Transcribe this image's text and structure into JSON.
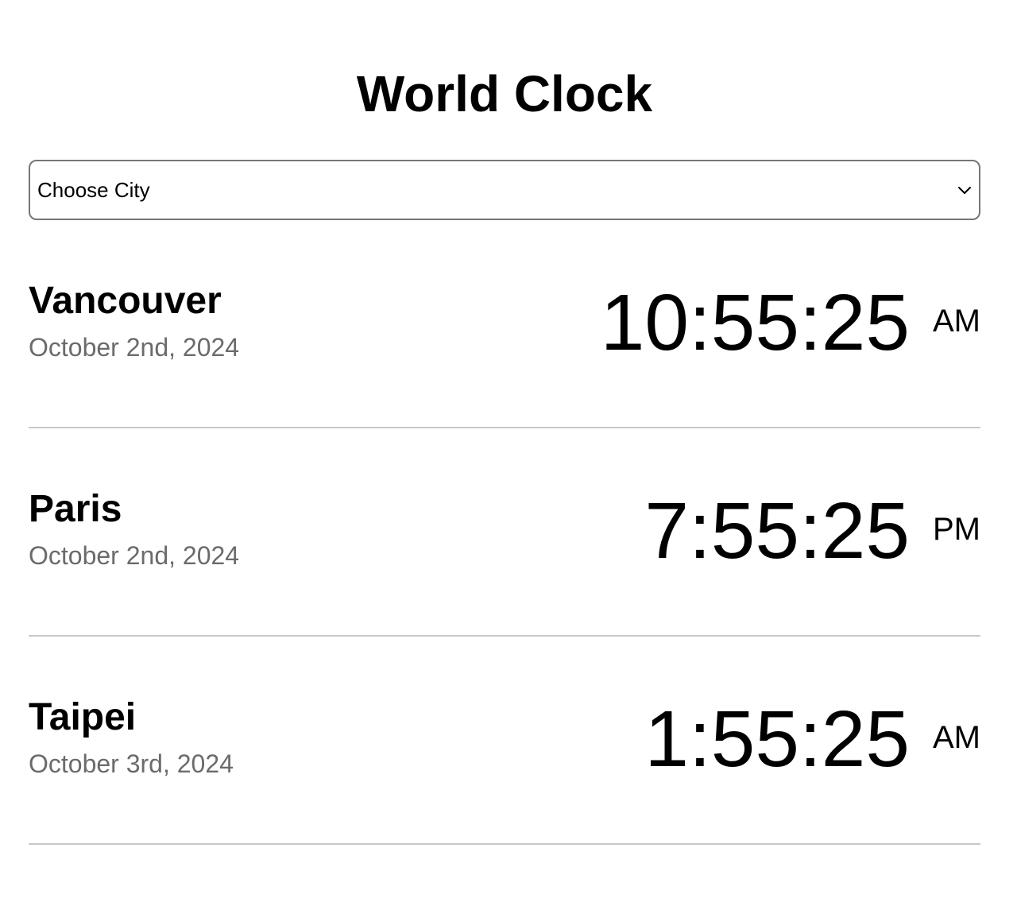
{
  "app": {
    "title": "World Clock"
  },
  "city_select": {
    "selected_value": "Choose City",
    "icon": "chevron-down-icon"
  },
  "cities": [
    {
      "name": "Vancouver",
      "date": "October 2nd, 2024",
      "time": "10:55:25",
      "period": "AM"
    },
    {
      "name": "Paris",
      "date": "October 2nd, 2024",
      "time": "7:55:25",
      "period": "PM"
    },
    {
      "name": "Taipei",
      "date": "October 3rd, 2024",
      "time": "1:55:25",
      "period": "AM"
    }
  ],
  "colors": {
    "text": "#000000",
    "date_text": "#6b6b6b",
    "divider": "#c8c8c8",
    "select_border": "#767676"
  }
}
